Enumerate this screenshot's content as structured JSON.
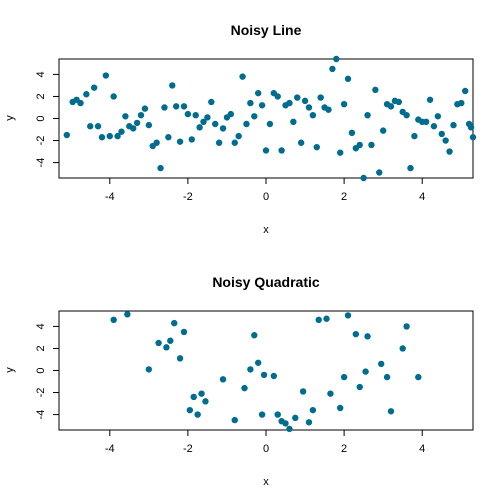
{
  "colors": {
    "point": "#006d8f",
    "axis": "#000000",
    "background": "#ffffff"
  },
  "chart_data": [
    {
      "type": "scatter",
      "title": "Noisy Line",
      "xlabel": "x",
      "ylabel": "y",
      "xlim": [
        -5.3,
        5.3
      ],
      "ylim": [
        -5.4,
        5.4
      ],
      "xticks": [
        -4,
        -2,
        0,
        2,
        4
      ],
      "yticks": [
        -4,
        -2,
        0,
        2,
        4
      ],
      "grid": false,
      "points": [
        [
          -5.1,
          -1.5
        ],
        [
          -4.95,
          1.5
        ],
        [
          -4.85,
          1.7
        ],
        [
          -4.75,
          1.4
        ],
        [
          -4.6,
          2.2
        ],
        [
          -4.5,
          -0.7
        ],
        [
          -4.4,
          2.8
        ],
        [
          -4.3,
          -0.7
        ],
        [
          -4.2,
          -1.7
        ],
        [
          -4.1,
          3.9
        ],
        [
          -4.0,
          -1.6
        ],
        [
          -3.9,
          2.0
        ],
        [
          -3.8,
          -1.6
        ],
        [
          -3.7,
          -1.2
        ],
        [
          -3.6,
          0.2
        ],
        [
          -3.5,
          -0.7
        ],
        [
          -3.4,
          -0.9
        ],
        [
          -3.3,
          -0.4
        ],
        [
          -3.2,
          0.3
        ],
        [
          -3.1,
          0.9
        ],
        [
          -3.0,
          -0.6
        ],
        [
          -2.9,
          -2.5
        ],
        [
          -2.8,
          -2.2
        ],
        [
          -2.7,
          -4.5
        ],
        [
          -2.6,
          1.0
        ],
        [
          -2.5,
          -1.7
        ],
        [
          -2.4,
          3.0
        ],
        [
          -2.3,
          1.1
        ],
        [
          -2.2,
          -2.1
        ],
        [
          -2.1,
          1.1
        ],
        [
          -2.0,
          0.4
        ],
        [
          -1.9,
          -1.9
        ],
        [
          -1.8,
          0.3
        ],
        [
          -1.7,
          -0.8
        ],
        [
          -1.6,
          -0.3
        ],
        [
          -1.5,
          0.1
        ],
        [
          -1.4,
          1.5
        ],
        [
          -1.3,
          -0.5
        ],
        [
          -1.2,
          -2.2
        ],
        [
          -1.1,
          -0.9
        ],
        [
          -1.0,
          0.1
        ],
        [
          -0.9,
          0.4
        ],
        [
          -0.8,
          -2.2
        ],
        [
          -0.7,
          -1.6
        ],
        [
          -0.6,
          3.8
        ],
        [
          -0.5,
          -0.5
        ],
        [
          -0.4,
          1.4
        ],
        [
          -0.3,
          0.2
        ],
        [
          -0.2,
          2.3
        ],
        [
          -0.1,
          1.2
        ],
        [
          0.0,
          -2.9
        ],
        [
          0.1,
          -0.5
        ],
        [
          0.2,
          2.3
        ],
        [
          0.3,
          2.0
        ],
        [
          0.4,
          -2.9
        ],
        [
          0.5,
          1.2
        ],
        [
          0.6,
          1.4
        ],
        [
          0.7,
          -0.3
        ],
        [
          0.8,
          1.9
        ],
        [
          0.9,
          -2.2
        ],
        [
          1.0,
          1.6
        ],
        [
          1.1,
          1.0
        ],
        [
          1.2,
          0.3
        ],
        [
          1.3,
          -2.6
        ],
        [
          1.4,
          1.9
        ],
        [
          1.5,
          1.0
        ],
        [
          1.6,
          0.8
        ],
        [
          1.7,
          4.5
        ],
        [
          1.8,
          5.4
        ],
        [
          1.9,
          -3.1
        ],
        [
          2.0,
          1.3
        ],
        [
          2.1,
          3.6
        ],
        [
          2.2,
          -1.3
        ],
        [
          2.3,
          -2.7
        ],
        [
          2.4,
          -2.4
        ],
        [
          2.5,
          -5.4
        ],
        [
          2.6,
          0.3
        ],
        [
          2.7,
          -2.4
        ],
        [
          2.8,
          2.6
        ],
        [
          2.9,
          -4.9
        ],
        [
          3.0,
          -1.1
        ],
        [
          3.1,
          1.3
        ],
        [
          3.2,
          1.1
        ],
        [
          3.3,
          1.6
        ],
        [
          3.4,
          1.5
        ],
        [
          3.5,
          0.6
        ],
        [
          3.6,
          0.3
        ],
        [
          3.7,
          -4.5
        ],
        [
          3.8,
          -1.6
        ],
        [
          3.9,
          -0.1
        ],
        [
          4.0,
          -0.3
        ],
        [
          4.1,
          -0.3
        ],
        [
          4.2,
          1.7
        ],
        [
          4.3,
          -0.7
        ],
        [
          4.4,
          0.2
        ],
        [
          4.5,
          -1.4
        ],
        [
          4.6,
          -2.0
        ],
        [
          4.7,
          -3.0
        ],
        [
          4.8,
          -0.6
        ],
        [
          4.9,
          1.3
        ],
        [
          5.0,
          1.4
        ],
        [
          5.1,
          2.5
        ],
        [
          5.2,
          -0.5
        ],
        [
          5.25,
          -0.8
        ],
        [
          5.3,
          -1.7
        ]
      ]
    },
    {
      "type": "scatter",
      "title": "Noisy Quadratic",
      "xlabel": "x",
      "ylabel": "y",
      "xlim": [
        -5.3,
        5.3
      ],
      "ylim": [
        -5.4,
        5.4
      ],
      "xticks": [
        -4,
        -2,
        0,
        2,
        4
      ],
      "yticks": [
        -4,
        -2,
        0,
        2,
        4
      ],
      "grid": false,
      "points": [
        [
          -3.9,
          4.6
        ],
        [
          -3.55,
          5.1
        ],
        [
          -3.0,
          0.1
        ],
        [
          -2.75,
          2.5
        ],
        [
          -2.55,
          2.1
        ],
        [
          -2.45,
          2.7
        ],
        [
          -2.35,
          4.3
        ],
        [
          -2.2,
          1.1
        ],
        [
          -2.1,
          3.5
        ],
        [
          -1.95,
          -3.6
        ],
        [
          -1.85,
          -2.4
        ],
        [
          -1.75,
          -4.0
        ],
        [
          -1.65,
          -2.1
        ],
        [
          -1.55,
          -2.8
        ],
        [
          -1.1,
          -0.8
        ],
        [
          -0.8,
          -4.5
        ],
        [
          -0.55,
          -1.6
        ],
        [
          -0.4,
          0.1
        ],
        [
          -0.3,
          3.2
        ],
        [
          -0.2,
          0.7
        ],
        [
          -0.05,
          -0.4
        ],
        [
          -0.1,
          -4.0
        ],
        [
          0.2,
          -0.5
        ],
        [
          0.3,
          -4.0
        ],
        [
          0.4,
          -4.6
        ],
        [
          0.5,
          -4.8
        ],
        [
          0.6,
          -5.3
        ],
        [
          0.75,
          -4.3
        ],
        [
          0.95,
          -1.9
        ],
        [
          1.1,
          -4.7
        ],
        [
          1.2,
          -3.6
        ],
        [
          1.35,
          4.6
        ],
        [
          1.55,
          4.7
        ],
        [
          1.65,
          -2.1
        ],
        [
          1.9,
          -3.4
        ],
        [
          2.0,
          -0.6
        ],
        [
          2.1,
          5.0
        ],
        [
          2.3,
          3.3
        ],
        [
          2.4,
          -1.5
        ],
        [
          2.55,
          -0.1
        ],
        [
          2.6,
          3.1
        ],
        [
          2.95,
          0.6
        ],
        [
          3.1,
          -0.6
        ],
        [
          3.2,
          -3.7
        ],
        [
          3.5,
          2.0
        ],
        [
          3.6,
          4.0
        ],
        [
          3.9,
          -0.6
        ]
      ]
    }
  ]
}
